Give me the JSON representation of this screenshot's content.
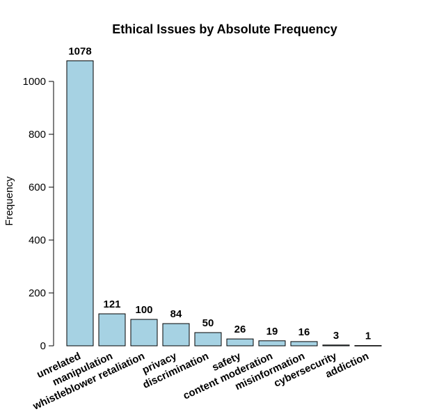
{
  "chart_data": {
    "type": "bar",
    "title": "Ethical Issues by Absolute Frequency",
    "xlabel": "",
    "ylabel": "Frequency",
    "ylim": [
      0,
      1100
    ],
    "yticks": [
      0,
      200,
      400,
      600,
      800,
      1000
    ],
    "categories": [
      "unrelated",
      "manipulation",
      "whistleblower retaliation",
      "privacy",
      "discrimination",
      "safety",
      "content moderation",
      "misinformation",
      "cybersecurity",
      "addiction"
    ],
    "values": [
      1078,
      121,
      100,
      84,
      50,
      26,
      19,
      16,
      3,
      1
    ],
    "data_labels": [
      "1078",
      "121",
      "100",
      "84",
      "50",
      "26",
      "19",
      "16",
      "3",
      "1"
    ],
    "bar_color": "#a6d2e3",
    "bar_edge_color": "#000000",
    "grid": false,
    "legend": "none"
  }
}
